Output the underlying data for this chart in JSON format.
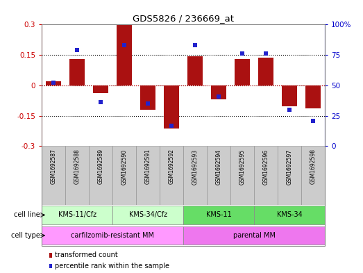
{
  "title": "GDS5826 / 236669_at",
  "samples": [
    "GSM1692587",
    "GSM1692588",
    "GSM1692589",
    "GSM1692590",
    "GSM1692591",
    "GSM1692592",
    "GSM1692593",
    "GSM1692594",
    "GSM1692595",
    "GSM1692596",
    "GSM1692597",
    "GSM1692598"
  ],
  "transformed_counts": [
    0.02,
    0.13,
    -0.04,
    0.3,
    -0.12,
    -0.215,
    0.145,
    -0.07,
    0.13,
    0.135,
    -0.105,
    -0.115
  ],
  "percentile_ranks": [
    52,
    79,
    36,
    83,
    35,
    17,
    83,
    41,
    76,
    76,
    30,
    21
  ],
  "cell_lines": [
    {
      "label": "KMS-11/Cfz",
      "start": 0,
      "end": 2,
      "color": "#ccffcc"
    },
    {
      "label": "KMS-34/Cfz",
      "start": 3,
      "end": 5,
      "color": "#ccffcc"
    },
    {
      "label": "KMS-11",
      "start": 6,
      "end": 8,
      "color": "#66dd66"
    },
    {
      "label": "KMS-34",
      "start": 9,
      "end": 11,
      "color": "#66dd66"
    }
  ],
  "cell_types": [
    {
      "label": "carfilzomib-resistant MM",
      "start": 0,
      "end": 5,
      "color": "#ff99ff"
    },
    {
      "label": "parental MM",
      "start": 6,
      "end": 11,
      "color": "#ee77ee"
    }
  ],
  "bar_color": "#aa1111",
  "dot_color": "#2222cc",
  "ylim_left": [
    -0.3,
    0.3
  ],
  "ylim_right": [
    0,
    100
  ],
  "yticks_left": [
    -0.3,
    -0.15,
    0,
    0.15,
    0.3
  ],
  "yticks_right": [
    0,
    25,
    50,
    75,
    100
  ],
  "sample_bg_color": "#cccccc",
  "legend_items": [
    {
      "color": "#aa1111",
      "label": "transformed count"
    },
    {
      "color": "#2222cc",
      "label": "percentile rank within the sample"
    }
  ]
}
